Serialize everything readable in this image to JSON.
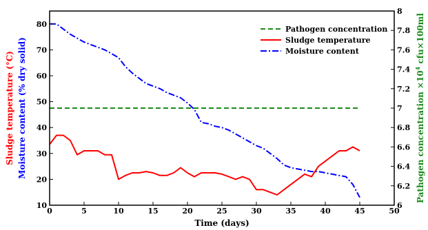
{
  "chart_data": {
    "type": "line",
    "xlabel": "Time (days)",
    "ylabel_left_1": "Sludge temperature (°C)",
    "ylabel_left_2": "Moisture content (% dry solid)",
    "ylabel_right": "Pathogen concentration ×10",
    "ylabel_right_sup": "4",
    "ylabel_right_unit": " cfu×100ml",
    "xlim": [
      0,
      50
    ],
    "ylim_left": [
      10,
      85
    ],
    "ylim_right": [
      6.0,
      8.0
    ],
    "x_ticks": [
      "0",
      "5",
      "10",
      "15",
      "20",
      "25",
      "30",
      "35",
      "40",
      "45",
      "50"
    ],
    "y_left_ticks": [
      "10",
      "20",
      "30",
      "40",
      "50",
      "60",
      "70",
      "80"
    ],
    "y_right_ticks": [
      "6",
      "6.2",
      "6.4",
      "6.6",
      "6.8",
      "7",
      "7.2",
      "7.4",
      "7.6",
      "7.8",
      "8"
    ],
    "legend_position": "top-right",
    "colors": {
      "pathogen": "#1a8a1a",
      "temperature": "#ff0000",
      "moisture": "#0000ff",
      "axis": "#000000"
    },
    "series": [
      {
        "name": "Pathogen concentration",
        "axis": "right",
        "style": "dashed",
        "x": [
          0,
          45
        ],
        "y": [
          7.0,
          7.0
        ]
      },
      {
        "name": "Sludge temperature",
        "axis": "left",
        "style": "solid",
        "x": [
          0,
          1,
          2,
          3,
          4,
          5,
          6,
          7,
          8,
          9,
          10,
          11,
          12,
          13,
          14,
          15,
          16,
          17,
          18,
          19,
          20,
          21,
          22,
          23,
          24,
          25,
          26,
          27,
          28,
          29,
          30,
          31,
          32,
          33,
          34,
          35,
          36,
          37,
          38,
          39,
          40,
          41,
          42,
          43,
          44,
          45
        ],
        "y": [
          33.5,
          37,
          37,
          35,
          29.5,
          31,
          31,
          31,
          29.5,
          29.5,
          20,
          21.5,
          22.5,
          22.5,
          23,
          22.5,
          21.5,
          21.5,
          22.5,
          24.5,
          22.5,
          21,
          22.5,
          22.5,
          22.5,
          22,
          21,
          20,
          21,
          20,
          16,
          16,
          15,
          14,
          16,
          18,
          20,
          22,
          21,
          25,
          27,
          29,
          31,
          31,
          32.5,
          31
        ]
      },
      {
        "name": "Moisture content",
        "axis": "left",
        "style": "dashdot",
        "x": [
          0,
          1,
          2,
          3,
          4,
          5,
          6,
          7,
          8,
          9,
          10,
          11,
          12,
          13,
          14,
          15,
          16,
          17,
          18,
          19,
          20,
          21,
          22,
          23,
          24,
          25,
          26,
          27,
          28,
          29,
          30,
          31,
          32,
          33,
          34,
          35,
          36,
          37,
          38,
          39,
          40,
          41,
          42,
          43,
          44,
          45
        ],
        "y": [
          80,
          80,
          78,
          76,
          74.5,
          73,
          72,
          71,
          70,
          68.5,
          67,
          63.5,
          61,
          59,
          57,
          56,
          55,
          53.5,
          52.5,
          51.5,
          49.5,
          47,
          42,
          41.5,
          40.5,
          40,
          39,
          37.5,
          36,
          34.5,
          33,
          32,
          30,
          28,
          25.5,
          24.5,
          24,
          23.5,
          23,
          23,
          22.5,
          22,
          21.5,
          21,
          18,
          13
        ]
      }
    ]
  }
}
